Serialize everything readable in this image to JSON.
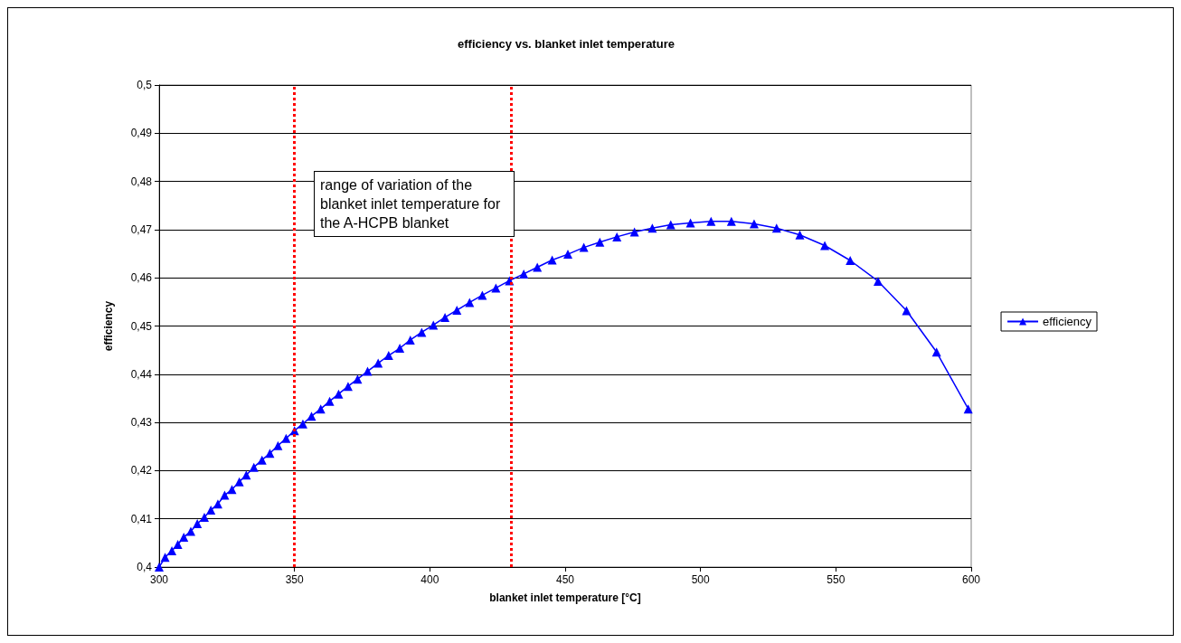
{
  "chart_data": {
    "type": "line",
    "title": "efficiency vs. blanket inlet temperature",
    "xlabel": "blanket inlet temperature [°C]",
    "ylabel": "efficiency",
    "series": [
      {
        "name": "efficiency",
        "color": "#0000ff",
        "x": [
          300,
          302.2,
          304.7,
          306.9,
          309.1,
          311.7,
          314.1,
          316.7,
          319.1,
          321.7,
          324.2,
          326.9,
          329.6,
          332.2,
          335,
          338,
          340.9,
          343.9,
          346.9,
          350,
          353.1,
          356.3,
          359.7,
          363,
          366.3,
          369.8,
          373.3,
          377,
          380.9,
          384.8,
          388.9,
          392.8,
          397,
          401.3,
          405.6,
          410,
          414.7,
          419.4,
          424.4,
          429.4,
          434.7,
          439.7,
          445.2,
          451,
          456.9,
          462.8,
          469.1,
          475.6,
          482.2,
          489,
          496.3,
          503.9,
          511.4,
          519.8,
          528.1,
          536.7,
          545.9,
          555.3,
          565.6,
          576.1,
          587.2,
          598.9
        ],
        "values": [
          0.4,
          0.402,
          0.4034,
          0.4047,
          0.4062,
          0.4074,
          0.409,
          0.4103,
          0.4118,
          0.4131,
          0.4149,
          0.4161,
          0.4177,
          0.4191,
          0.4207,
          0.4222,
          0.4236,
          0.4252,
          0.4267,
          0.4283,
          0.4297,
          0.4313,
          0.4328,
          0.4344,
          0.4359,
          0.4375,
          0.439,
          0.4406,
          0.4423,
          0.4439,
          0.4454,
          0.4471,
          0.4487,
          0.4502,
          0.4518,
          0.4533,
          0.4549,
          0.4564,
          0.4579,
          0.4594,
          0.4608,
          0.4622,
          0.4637,
          0.4649,
          0.4663,
          0.4674,
          0.4685,
          0.4695,
          0.4703,
          0.471,
          0.4714,
          0.4717,
          0.4717,
          0.4712,
          0.4703,
          0.4689,
          0.4667,
          0.4636,
          0.4593,
          0.4532,
          0.4446,
          0.4328
        ]
      }
    ],
    "xlim": [
      300,
      600
    ],
    "xticks": [
      300,
      350,
      400,
      450,
      500,
      550,
      600
    ],
    "ylim": [
      0.4,
      0.5
    ],
    "yticks": [
      {
        "value": 0.4,
        "label": "0,4"
      },
      {
        "value": 0.41,
        "label": "0,41"
      },
      {
        "value": 0.42,
        "label": "0,42"
      },
      {
        "value": 0.43,
        "label": "0,43"
      },
      {
        "value": 0.44,
        "label": "0,44"
      },
      {
        "value": 0.45,
        "label": "0,45"
      },
      {
        "value": 0.46,
        "label": "0,46"
      },
      {
        "value": 0.47,
        "label": "0,47"
      },
      {
        "value": 0.48,
        "label": "0,48"
      },
      {
        "value": 0.49,
        "label": "0,49"
      },
      {
        "value": 0.5,
        "label": "0,5"
      }
    ],
    "ref_lines": [
      {
        "axis": "x",
        "value": 350,
        "color": "#ff0000",
        "line_style": "dotted"
      },
      {
        "axis": "x",
        "value": 430,
        "color": "#ff0000",
        "line_style": "dotted"
      }
    ],
    "annotations": [
      "range of variation of the blanket inlet temperature for the A-HCPB blanket"
    ],
    "grid": "y",
    "legend": "right",
    "marker": "triangle",
    "line_style": "solid"
  }
}
